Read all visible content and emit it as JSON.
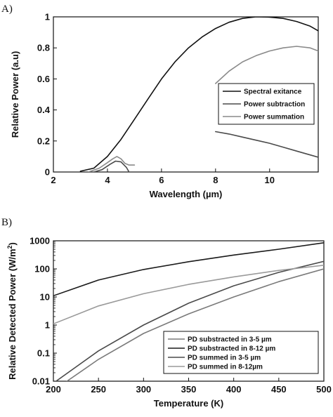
{
  "chart_data": [
    {
      "panel_label": "A)",
      "type": "line",
      "xlabel": "Wavelength (µm)",
      "ylabel": "Relative  Power (a.u)",
      "xlim": [
        2,
        11.8
      ],
      "ylim": [
        0,
        1
      ],
      "x_ticks": [
        "2",
        "4",
        "6",
        "8",
        "10"
      ],
      "y_ticks": [
        "0",
        "0.2",
        "0.4",
        "0.6",
        "0.8",
        "1"
      ],
      "legend_position": "center-right",
      "series": [
        {
          "name": "Spectral exitance",
          "color": "#111111",
          "points": [
            [
              3,
              0.005
            ],
            [
              3.5,
              0.025
            ],
            [
              4,
              0.1
            ],
            [
              4.5,
              0.21
            ],
            [
              5,
              0.34
            ],
            [
              5.5,
              0.47
            ],
            [
              6,
              0.6
            ],
            [
              6.5,
              0.71
            ],
            [
              7,
              0.8
            ],
            [
              7.5,
              0.87
            ],
            [
              8,
              0.925
            ],
            [
              8.5,
              0.965
            ],
            [
              9,
              0.99
            ],
            [
              9.5,
              1.0
            ],
            [
              10,
              0.998
            ],
            [
              10.5,
              0.99
            ],
            [
              11,
              0.97
            ],
            [
              11.5,
              0.94
            ],
            [
              11.8,
              0.91
            ]
          ]
        },
        {
          "name": "Power subtraction",
          "color": "#4a4a4a",
          "segments": [
            [
              [
                3.5,
                0.0
              ],
              [
                3.8,
                0.015
              ],
              [
                4.1,
                0.05
              ],
              [
                4.3,
                0.07
              ],
              [
                4.5,
                0.065
              ],
              [
                4.7,
                0.03
              ],
              [
                4.8,
                0.0
              ]
            ],
            [
              [
                8,
                0.26
              ],
              [
                8.5,
                0.245
              ],
              [
                9,
                0.225
              ],
              [
                9.5,
                0.205
              ],
              [
                10,
                0.185
              ],
              [
                10.5,
                0.16
              ],
              [
                11,
                0.135
              ],
              [
                11.5,
                0.11
              ],
              [
                11.8,
                0.095
              ]
            ]
          ]
        },
        {
          "name": "Power summation",
          "color": "#8a8a8a",
          "segments": [
            [
              [
                3.3,
                0.0
              ],
              [
                3.7,
                0.025
              ],
              [
                4.0,
                0.06
              ],
              [
                4.2,
                0.085
              ],
              [
                4.35,
                0.1
              ],
              [
                4.5,
                0.085
              ],
              [
                4.65,
                0.055
              ],
              [
                4.8,
                0.045
              ],
              [
                5.0,
                0.045
              ]
            ],
            [
              [
                8,
                0.57
              ],
              [
                8.5,
                0.65
              ],
              [
                9,
                0.71
              ],
              [
                9.5,
                0.75
              ],
              [
                10,
                0.78
              ],
              [
                10.5,
                0.8
              ],
              [
                11,
                0.81
              ],
              [
                11.5,
                0.8
              ],
              [
                11.8,
                0.78
              ]
            ]
          ]
        }
      ]
    },
    {
      "panel_label": "B)",
      "type": "line",
      "xlabel": "Temperature (K)",
      "ylabel": "Relative Detected Power (W/m",
      "ylabel_superscript": "2",
      "ylabel_suffix": ")",
      "xlim": [
        200,
        500
      ],
      "ylim": [
        0.01,
        1000
      ],
      "y_scale": "log",
      "x_ticks": [
        "200",
        "250",
        "300",
        "350",
        "400",
        "450",
        "500"
      ],
      "y_ticks": [
        "0.01",
        "0.1",
        "1",
        "10",
        "100",
        "1000"
      ],
      "legend_position": "bottom-right",
      "series": [
        {
          "name": "PD substracted in 3-5 µm",
          "color": "#7a7a7a",
          "points": [
            [
              200,
              0.0035
            ],
            [
              215,
              0.01
            ],
            [
              250,
              0.06
            ],
            [
              300,
              0.5
            ],
            [
              350,
              2.5
            ],
            [
              400,
              10
            ],
            [
              450,
              35
            ],
            [
              500,
              100
            ]
          ]
        },
        {
          "name": "PD substracted in 8-12  µm",
          "color": "#1a1a1a",
          "points": [
            [
              200,
              11
            ],
            [
              250,
              40
            ],
            [
              300,
              95
            ],
            [
              350,
              180
            ],
            [
              400,
              310
            ],
            [
              450,
              500
            ],
            [
              500,
              850
            ]
          ]
        },
        {
          "name": "PD summed in 3-5  µm",
          "color": "#4a4a4a",
          "points": [
            [
              200,
              0.008
            ],
            [
              203,
              0.01
            ],
            [
              250,
              0.12
            ],
            [
              300,
              1.0
            ],
            [
              350,
              6
            ],
            [
              400,
              25
            ],
            [
              450,
              75
            ],
            [
              500,
              185
            ]
          ]
        },
        {
          "name": "PD summed in 8-12µm",
          "color": "#9a9a9a",
          "points": [
            [
              200,
              1.1
            ],
            [
              250,
              4.8
            ],
            [
              300,
              13
            ],
            [
              350,
              28
            ],
            [
              400,
              52
            ],
            [
              450,
              88
            ],
            [
              500,
              135
            ]
          ]
        }
      ]
    }
  ]
}
